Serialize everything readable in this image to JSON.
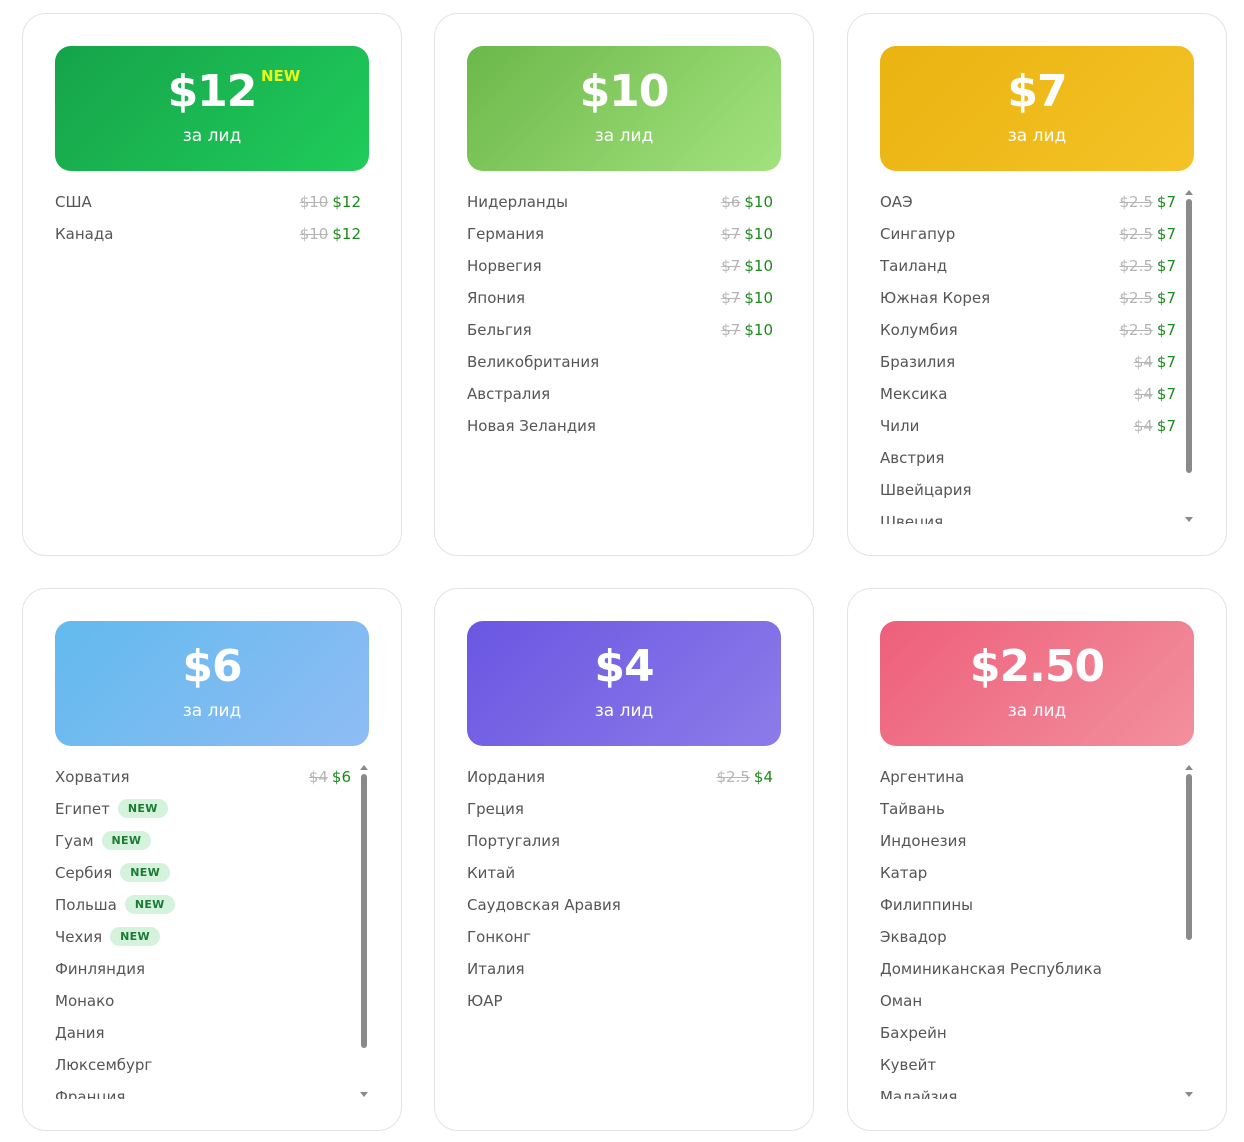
{
  "cards": [
    {
      "price": "$12",
      "per": "за лид",
      "price_badge": "NEW",
      "rows": [
        {
          "name": "США",
          "old": "$10",
          "new": "$12"
        },
        {
          "name": "Канада",
          "old": "$10",
          "new": "$12"
        }
      ]
    },
    {
      "price": "$10",
      "per": "за лид",
      "rows": [
        {
          "name": "Нидерланды",
          "old": "$6",
          "new": "$10"
        },
        {
          "name": "Германия",
          "old": "$7",
          "new": "$10"
        },
        {
          "name": "Норвегия",
          "old": "$7",
          "new": "$10"
        },
        {
          "name": "Япония",
          "old": "$7",
          "new": "$10"
        },
        {
          "name": "Бельгия",
          "old": "$7",
          "new": "$10"
        },
        {
          "name": "Великобритания"
        },
        {
          "name": "Австралия"
        },
        {
          "name": "Новая Зеландия"
        }
      ]
    },
    {
      "price": "$7",
      "per": "за лид",
      "rows": [
        {
          "name": "ОАЭ",
          "old": "$2.5",
          "new": "$7"
        },
        {
          "name": "Сингапур",
          "old": "$2.5",
          "new": "$7"
        },
        {
          "name": "Таиланд",
          "old": "$2.5",
          "new": "$7"
        },
        {
          "name": "Южная Корея",
          "old": "$2.5",
          "new": "$7"
        },
        {
          "name": "Колумбия",
          "old": "$2.5",
          "new": "$7"
        },
        {
          "name": "Бразилия",
          "old": "$4",
          "new": "$7"
        },
        {
          "name": "Мексика",
          "old": "$4",
          "new": "$7"
        },
        {
          "name": "Чили",
          "old": "$4",
          "new": "$7"
        },
        {
          "name": "Австрия"
        },
        {
          "name": "Швейцария"
        },
        {
          "name": "Швеция"
        }
      ]
    },
    {
      "price": "$6",
      "per": "за лид",
      "rows": [
        {
          "name": "Хорватия",
          "old": "$4",
          "new": "$6"
        },
        {
          "name": "Египет",
          "badge": "NEW"
        },
        {
          "name": "Гуам",
          "badge": "NEW"
        },
        {
          "name": "Сербия",
          "badge": "NEW"
        },
        {
          "name": "Польша",
          "badge": "NEW"
        },
        {
          "name": "Чехия",
          "badge": "NEW"
        },
        {
          "name": "Финляндия"
        },
        {
          "name": "Монако"
        },
        {
          "name": "Дания"
        },
        {
          "name": "Люксембург"
        },
        {
          "name": "Франция"
        }
      ]
    },
    {
      "price": "$4",
      "per": "за лид",
      "rows": [
        {
          "name": "Иордания",
          "old": "$2.5",
          "new": "$4"
        },
        {
          "name": "Греция"
        },
        {
          "name": "Португалия"
        },
        {
          "name": "Китай"
        },
        {
          "name": "Саудовская Аравия"
        },
        {
          "name": "Гонконг"
        },
        {
          "name": "Италия"
        },
        {
          "name": "ЮАР"
        }
      ]
    },
    {
      "price": "$2.50",
      "per": "за лид",
      "rows": [
        {
          "name": "Аргентина"
        },
        {
          "name": "Тайвань"
        },
        {
          "name": "Индонезия"
        },
        {
          "name": "Катар"
        },
        {
          "name": "Филиппины"
        },
        {
          "name": "Эквадор"
        },
        {
          "name": "Доминиканская Республика"
        },
        {
          "name": "Оман"
        },
        {
          "name": "Бахрейн"
        },
        {
          "name": "Кувейт"
        },
        {
          "name": "Малайзия"
        }
      ]
    }
  ]
}
